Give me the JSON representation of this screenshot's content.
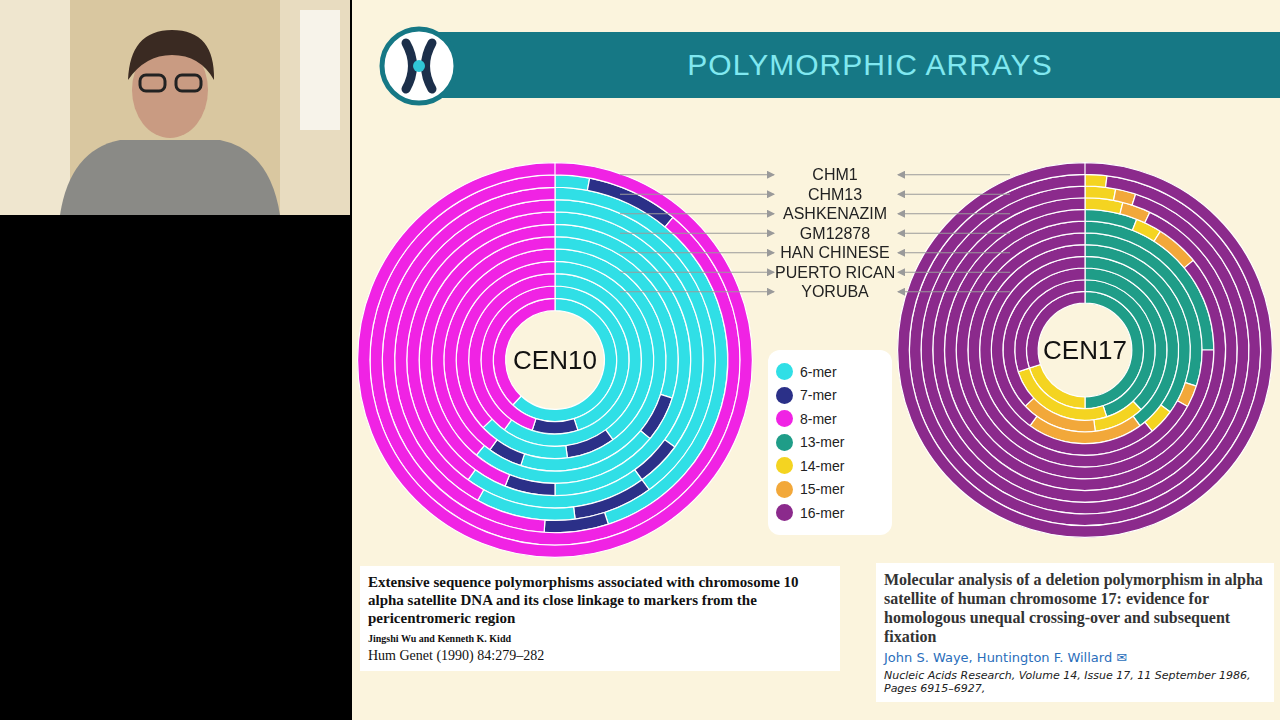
{
  "slide": {
    "title": "POLYMORPHIC ARRAYS"
  },
  "samples": [
    "CHM1",
    "CHM13",
    "ASHKENAZIM",
    "GM12878",
    "HAN CHINESE",
    "PUERTO RICAN",
    "YORUBA"
  ],
  "legend_items": [
    {
      "name": "6-mer",
      "color": "#30dfe6"
    },
    {
      "name": "7-mer",
      "color": "#2b3088"
    },
    {
      "name": "8-mer",
      "color": "#f023e4"
    },
    {
      "name": "13-mer",
      "color": "#1f9d88"
    },
    {
      "name": "14-mer",
      "color": "#f4d421"
    },
    {
      "name": "15-mer",
      "color": "#f2a83a"
    },
    {
      "name": "16-mer",
      "color": "#8b2a8c"
    }
  ],
  "chart_data": [
    {
      "type": "doughnut",
      "title": "CEN10",
      "rings": [
        {
          "segments": [
            "8-mer"
          ],
          "values": [
            100
          ]
        },
        {
          "segments": [
            "6-mer",
            "7-mer",
            "8-mer"
          ],
          "values": [
            3,
            8,
            89
          ]
        },
        {
          "segments": [
            "6-mer",
            "7-mer",
            "8-mer"
          ],
          "values": [
            45,
            6,
            49
          ]
        },
        {
          "segments": [
            "6-mer",
            "7-mer",
            "6-mer",
            "8-mer"
          ],
          "values": [
            40,
            8,
            10,
            42
          ]
        },
        {
          "segments": [
            "6-mer",
            "7-mer",
            "6-mer",
            "8-mer"
          ],
          "values": [
            35,
            5,
            20,
            40
          ]
        },
        {
          "segments": [
            "6-mer",
            "7-mer",
            "8-mer"
          ],
          "values": [
            50,
            6,
            44
          ]
        },
        {
          "segments": [
            "6-mer",
            "7-mer",
            "6-mer",
            "8-mer"
          ],
          "values": [
            30,
            6,
            25,
            39
          ]
        },
        {
          "segments": [
            "6-mer",
            "7-mer",
            "8-mer"
          ],
          "values": [
            55,
            5,
            40
          ]
        },
        {
          "segments": [
            "6-mer",
            "7-mer",
            "6-mer",
            "8-mer"
          ],
          "values": [
            40,
            8,
            15,
            37
          ]
        },
        {
          "segments": [
            "6-mer",
            "8-mer"
          ],
          "values": [
            60,
            40
          ]
        },
        {
          "segments": [
            "6-mer",
            "7-mer",
            "8-mer"
          ],
          "values": [
            45,
            10,
            45
          ]
        },
        {
          "segments": [
            "6-mer",
            "8-mer"
          ],
          "values": [
            62,
            38
          ]
        }
      ]
    },
    {
      "type": "doughnut",
      "title": "CEN17",
      "rings": [
        {
          "segments": [
            "16-mer"
          ],
          "values": [
            100
          ]
        },
        {
          "segments": [
            "14-mer",
            "16-mer"
          ],
          "values": [
            2,
            98
          ]
        },
        {
          "segments": [
            "14-mer",
            "15-mer",
            "16-mer"
          ],
          "values": [
            3,
            2,
            95
          ]
        },
        {
          "segments": [
            "14-mer",
            "15-mer",
            "16-mer"
          ],
          "values": [
            4,
            3,
            93
          ]
        },
        {
          "segments": [
            "13-mer",
            "14-mer",
            "15-mer",
            "16-mer"
          ],
          "values": [
            6,
            3,
            5,
            86
          ]
        },
        {
          "segments": [
            "13-mer",
            "16-mer"
          ],
          "values": [
            25,
            75
          ]
        },
        {
          "segments": [
            "13-mer",
            "15-mer",
            "16-mer"
          ],
          "values": [
            30,
            3,
            67
          ]
        },
        {
          "segments": [
            "13-mer",
            "14-mer",
            "16-mer"
          ],
          "values": [
            35,
            4,
            61
          ]
        },
        {
          "segments": [
            "13-mer",
            "15-mer",
            "16-mer"
          ],
          "values": [
            40,
            20,
            40
          ]
        },
        {
          "segments": [
            "13-mer",
            "14-mer",
            "15-mer",
            "16-mer"
          ],
          "values": [
            38,
            10,
            15,
            37
          ]
        },
        {
          "segments": [
            "13-mer",
            "14-mer",
            "16-mer"
          ],
          "values": [
            45,
            25,
            30
          ]
        },
        {
          "segments": [
            "13-mer",
            "14-mer",
            "16-mer"
          ],
          "values": [
            50,
            20,
            30
          ]
        }
      ]
    }
  ],
  "citations": [
    {
      "title": "Extensive sequence polymorphisms associated with chromosome 10 alpha satellite DNA and its close linkage to markers from the pericentromeric region",
      "authors": "Jingshi Wu and Kenneth K. Kidd",
      "source": "Hum Genet (1990) 84:279–282"
    },
    {
      "title": "Molecular analysis of a deletion polymorphism in alpha satellite of human chromosome 17: evidence for homologous unequal crossing-over and subsequent fixation",
      "authors": "John S. Waye, Huntington F. Willard ✉",
      "source": "Nucleic Acids Research, Volume 14, Issue 17, 11 September 1986, Pages 6915–6927,"
    }
  ]
}
